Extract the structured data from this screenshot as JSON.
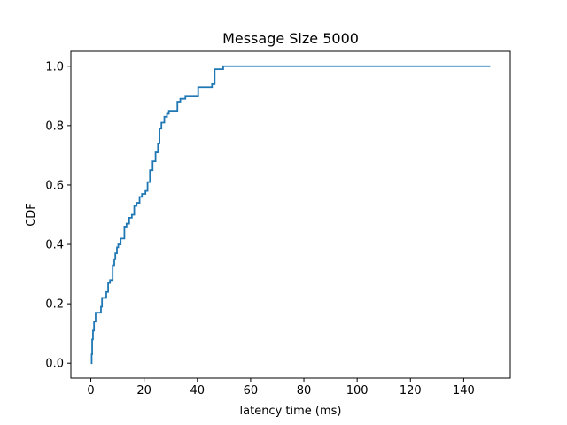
{
  "chart_data": {
    "type": "line",
    "title": "Message Size 5000",
    "xlabel": "latency time (ms)",
    "ylabel": "CDF",
    "xlim": [
      -7.5,
      157.5
    ],
    "ylim": [
      -0.05,
      1.05
    ],
    "x_ticks": [
      0,
      20,
      40,
      60,
      80,
      100,
      120,
      140
    ],
    "y_ticks": [
      0.0,
      0.2,
      0.4,
      0.6,
      0.8,
      1.0
    ],
    "x_tick_labels": [
      "0",
      "20",
      "40",
      "60",
      "80",
      "100",
      "120",
      "140"
    ],
    "y_tick_labels": [
      "0.0",
      "0.2",
      "0.4",
      "0.6",
      "0.8",
      "1.0"
    ],
    "grid": false,
    "line_color": "#1f77b4",
    "series": [
      {
        "step": "post",
        "x": [
          0,
          0.3,
          0.5,
          0.8,
          1.2,
          1.8,
          3.8,
          4.2,
          4.8,
          5.8,
          6.5,
          7.2,
          8.2,
          8.8,
          9.2,
          9.8,
          10.3,
          11.2,
          12.6,
          13.4,
          14.4,
          15.4,
          16.3,
          17.2,
          18.3,
          19.2,
          20.5,
          21.3,
          22.2,
          23.2,
          24.3,
          25.2,
          25.8,
          26.5,
          27.6,
          28.6,
          29.3,
          31.8,
          32.5,
          33.6,
          35.5,
          40.3,
          45.5,
          46.5,
          49.7,
          150
        ],
        "y": [
          0.0,
          0.03,
          0.08,
          0.11,
          0.14,
          0.17,
          0.19,
          0.22,
          0.22,
          0.24,
          0.27,
          0.28,
          0.33,
          0.35,
          0.37,
          0.39,
          0.4,
          0.42,
          0.46,
          0.47,
          0.49,
          0.5,
          0.53,
          0.54,
          0.56,
          0.57,
          0.58,
          0.61,
          0.65,
          0.68,
          0.71,
          0.74,
          0.79,
          0.81,
          0.83,
          0.84,
          0.85,
          0.85,
          0.88,
          0.89,
          0.9,
          0.93,
          0.94,
          0.99,
          1.0,
          1.0
        ]
      }
    ]
  }
}
